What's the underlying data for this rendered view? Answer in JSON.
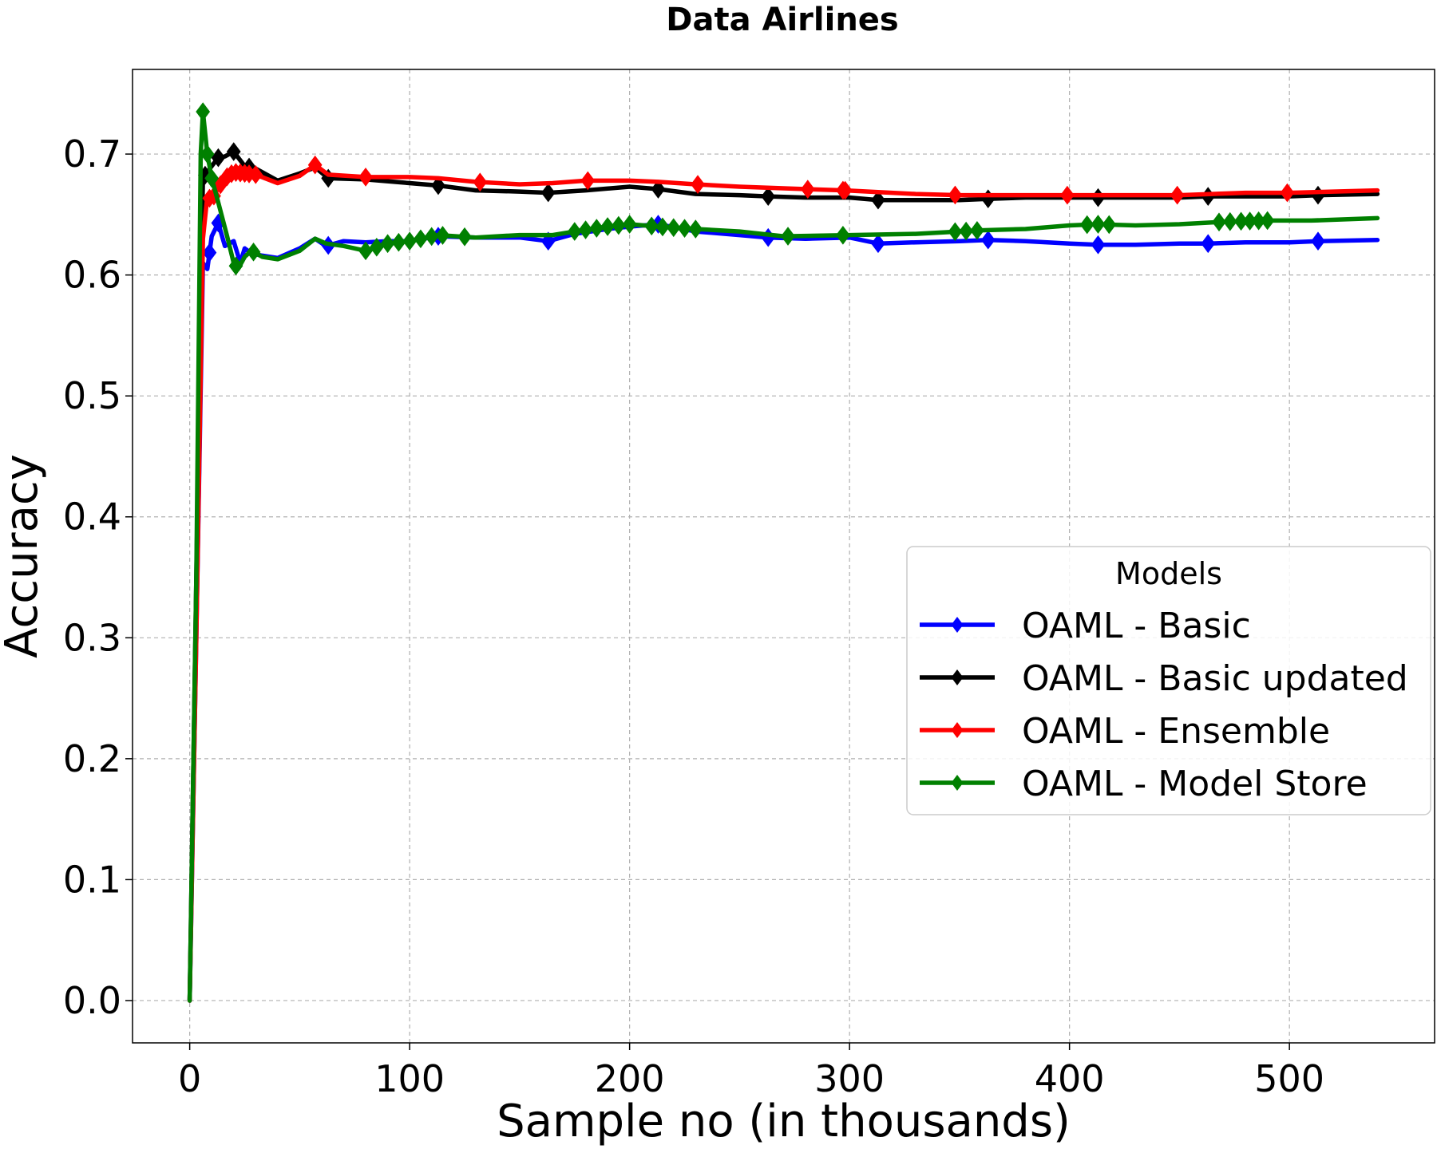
{
  "chart_data": {
    "type": "line",
    "title": "Data Airlines",
    "xlabel": "Sample no (in thousands)",
    "ylabel": "Accuracy",
    "xlim": [
      -26,
      566
    ],
    "ylim": [
      -0.035,
      0.77
    ],
    "xticks": [
      0,
      100,
      200,
      300,
      400,
      500
    ],
    "yticks": [
      0.0,
      0.1,
      0.2,
      0.3,
      0.4,
      0.5,
      0.6,
      0.7
    ],
    "xtick_labels": [
      "0",
      "100",
      "200",
      "300",
      "400",
      "500"
    ],
    "ytick_labels": [
      "0.0",
      "0.1",
      "0.2",
      "0.3",
      "0.4",
      "0.5",
      "0.6",
      "0.7"
    ],
    "grid": true,
    "legend": {
      "title": "Models",
      "position": "center-right"
    },
    "series": [
      {
        "name": "OAML - Basic",
        "color": "#0000ff",
        "x": [
          0,
          3,
          6,
          8,
          10,
          13,
          16,
          20,
          23,
          25,
          28,
          33,
          40,
          50,
          57,
          62,
          70,
          80,
          90,
          100,
          113,
          130,
          150,
          163,
          175,
          190,
          200,
          213,
          230,
          250,
          263,
          280,
          300,
          313,
          330,
          350,
          363,
          380,
          400,
          413,
          430,
          450,
          463,
          480,
          500,
          513,
          540
        ],
        "y": [
          0.0,
          0.3,
          0.61,
          0.605,
          0.632,
          0.643,
          0.624,
          0.628,
          0.61,
          0.622,
          0.618,
          0.616,
          0.614,
          0.622,
          0.63,
          0.624,
          0.628,
          0.627,
          0.628,
          0.628,
          0.632,
          0.631,
          0.631,
          0.628,
          0.634,
          0.638,
          0.64,
          0.642,
          0.636,
          0.633,
          0.631,
          0.63,
          0.631,
          0.626,
          0.627,
          0.628,
          0.629,
          0.628,
          0.626,
          0.625,
          0.625,
          0.626,
          0.626,
          0.627,
          0.627,
          0.628,
          0.629
        ],
        "markers_x": [
          9,
          13,
          63,
          113,
          163,
          213,
          263,
          313,
          363,
          413,
          463,
          513
        ]
      },
      {
        "name": "OAML - Basic updated",
        "color": "#000000",
        "x": [
          0,
          3,
          6,
          8,
          10,
          13,
          16,
          20,
          25,
          30,
          40,
          50,
          57,
          63,
          80,
          100,
          113,
          130,
          150,
          163,
          180,
          200,
          213,
          230,
          250,
          263,
          280,
          300,
          313,
          330,
          350,
          363,
          380,
          400,
          413,
          430,
          450,
          463,
          480,
          500,
          513,
          540
        ],
        "y": [
          0.0,
          0.35,
          0.68,
          0.685,
          0.69,
          0.697,
          0.698,
          0.702,
          0.69,
          0.688,
          0.678,
          0.684,
          0.689,
          0.68,
          0.679,
          0.676,
          0.674,
          0.67,
          0.669,
          0.668,
          0.67,
          0.673,
          0.671,
          0.667,
          0.666,
          0.665,
          0.664,
          0.664,
          0.662,
          0.662,
          0.662,
          0.663,
          0.664,
          0.664,
          0.664,
          0.664,
          0.664,
          0.665,
          0.665,
          0.665,
          0.666,
          0.667
        ],
        "markers_x": [
          7,
          13,
          20,
          27,
          63,
          113,
          163,
          213,
          263,
          313,
          363,
          413,
          463,
          513
        ]
      },
      {
        "name": "OAML - Ensemble",
        "color": "#ff0000",
        "x": [
          0,
          3,
          6,
          8,
          10,
          13,
          16,
          20,
          25,
          30,
          40,
          50,
          57,
          63,
          80,
          100,
          113,
          130,
          150,
          165,
          180,
          200,
          213,
          230,
          250,
          280,
          298,
          330,
          350,
          380,
          400,
          430,
          450,
          480,
          500,
          540
        ],
        "y": [
          0.0,
          0.3,
          0.63,
          0.665,
          0.662,
          0.672,
          0.68,
          0.685,
          0.684,
          0.683,
          0.676,
          0.682,
          0.691,
          0.683,
          0.681,
          0.681,
          0.68,
          0.677,
          0.675,
          0.676,
          0.678,
          0.678,
          0.677,
          0.675,
          0.673,
          0.671,
          0.67,
          0.667,
          0.666,
          0.666,
          0.666,
          0.666,
          0.666,
          0.668,
          0.668,
          0.67
        ],
        "markers_x": [
          9,
          11,
          14,
          17,
          19,
          21,
          23,
          25,
          27,
          30,
          57,
          80,
          132,
          181,
          231,
          281,
          297,
          298,
          348,
          399,
          449,
          499
        ]
      },
      {
        "name": "OAML - Model Store",
        "color": "#008000",
        "x": [
          0,
          3,
          5,
          6,
          8,
          10,
          13,
          17,
          20,
          22,
          25,
          28,
          33,
          40,
          50,
          57,
          62,
          70,
          80,
          90,
          100,
          113,
          130,
          150,
          165,
          175,
          190,
          200,
          213,
          230,
          250,
          270,
          300,
          330,
          350,
          360,
          380,
          400,
          413,
          430,
          450,
          470,
          490,
          510,
          540
        ],
        "y": [
          0.0,
          0.35,
          0.7,
          0.735,
          0.7,
          0.68,
          0.66,
          0.632,
          0.61,
          0.605,
          0.615,
          0.62,
          0.615,
          0.613,
          0.62,
          0.63,
          0.626,
          0.624,
          0.62,
          0.626,
          0.628,
          0.633,
          0.631,
          0.633,
          0.633,
          0.636,
          0.64,
          0.642,
          0.64,
          0.638,
          0.636,
          0.632,
          0.633,
          0.634,
          0.636,
          0.637,
          0.638,
          0.641,
          0.642,
          0.641,
          0.642,
          0.644,
          0.645,
          0.645,
          0.647
        ],
        "markers_x": [
          6,
          8,
          10,
          21,
          29,
          80,
          85,
          90,
          95,
          100,
          105,
          110,
          115,
          125,
          175,
          180,
          185,
          190,
          195,
          200,
          210,
          215,
          220,
          225,
          230,
          272,
          297,
          348,
          353,
          358,
          408,
          413,
          418,
          468,
          473,
          478,
          482,
          486,
          490
        ]
      }
    ]
  }
}
